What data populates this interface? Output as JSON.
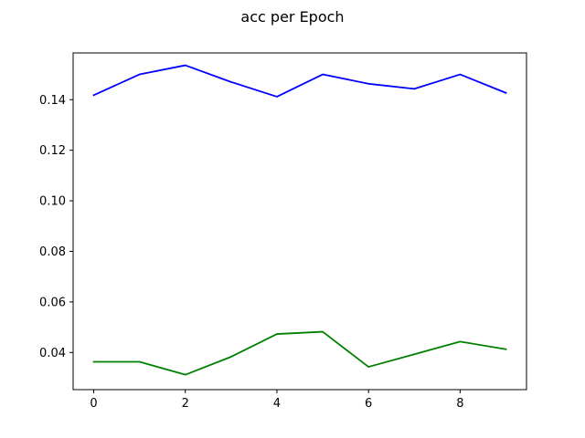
{
  "chart_data": {
    "type": "line",
    "title": "acc per Epoch",
    "xlabel": "",
    "ylabel": "",
    "x": [
      0,
      1,
      2,
      3,
      4,
      5,
      6,
      7,
      8,
      9
    ],
    "xlim": [
      -0.45,
      9.45
    ],
    "ylim": [
      0.0253,
      0.1585
    ],
    "xticks": [
      0,
      2,
      4,
      6,
      8
    ],
    "xtick_labels": [
      "0",
      "2",
      "4",
      "6",
      "8"
    ],
    "yticks": [
      0.04,
      0.06,
      0.08,
      0.1,
      0.12,
      0.14
    ],
    "ytick_labels": [
      "0.04",
      "0.06",
      "0.08",
      "0.10",
      "0.12",
      "0.14"
    ],
    "grid": false,
    "legend": "none",
    "series": [
      {
        "color": "#0000ff",
        "values": [
          0.1418,
          0.15,
          0.1536,
          0.147,
          0.1412,
          0.15,
          0.1463,
          0.1443,
          0.15,
          0.1427
        ]
      },
      {
        "color": "#008000",
        "values": [
          0.0363,
          0.0363,
          0.0312,
          0.0383,
          0.0473,
          0.0482,
          0.0343,
          0.0393,
          0.0443,
          0.0413
        ]
      }
    ]
  }
}
